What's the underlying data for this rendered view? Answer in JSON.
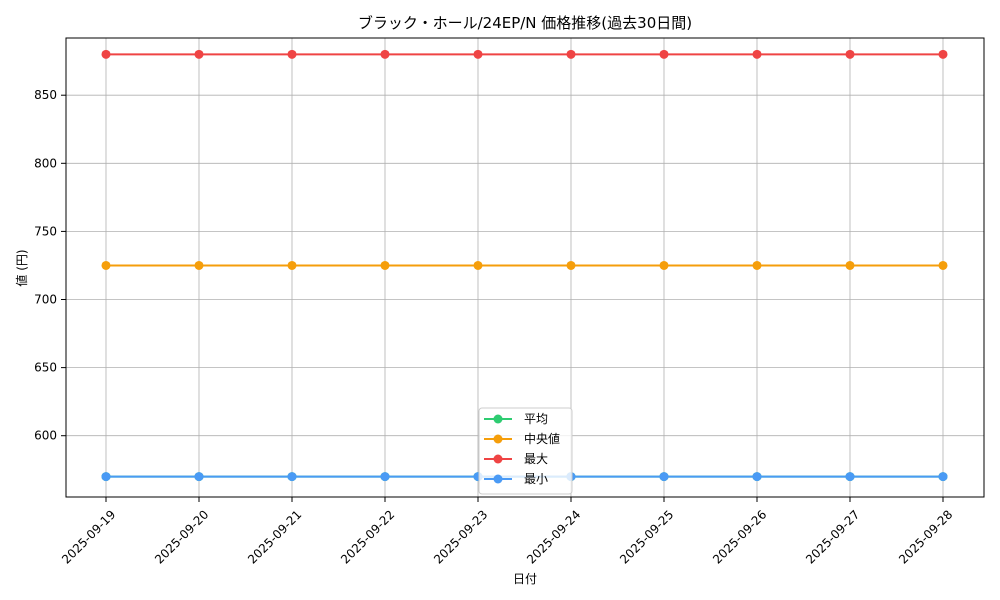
{
  "chart_data": {
    "type": "line",
    "title": "ブラック・ホール/24EP/N 価格推移(過去30日間)",
    "xlabel": "日付",
    "ylabel": "値 (円)",
    "categories": [
      "2025-09-19",
      "2025-09-20",
      "2025-09-21",
      "2025-09-22",
      "2025-09-23",
      "2025-09-24",
      "2025-09-25",
      "2025-09-26",
      "2025-09-27",
      "2025-09-28"
    ],
    "ylim": [
      555,
      892
    ],
    "yticks": [
      600,
      650,
      700,
      750,
      800,
      850
    ],
    "grid": true,
    "legend_position": "bottom-center",
    "series": [
      {
        "name": "平均",
        "color": "#2ecc71",
        "values": [
          570,
          570,
          570,
          570,
          570,
          570,
          570,
          570,
          570,
          570
        ]
      },
      {
        "name": "中央値",
        "color": "#f59e0b",
        "values": [
          725,
          725,
          725,
          725,
          725,
          725,
          725,
          725,
          725,
          725
        ]
      },
      {
        "name": "最大",
        "color": "#ef4444",
        "values": [
          880,
          880,
          880,
          880,
          880,
          880,
          880,
          880,
          880,
          880
        ]
      },
      {
        "name": "最小",
        "color": "#4a9af5",
        "values": [
          570,
          570,
          570,
          570,
          570,
          570,
          570,
          570,
          570,
          570
        ]
      }
    ]
  }
}
